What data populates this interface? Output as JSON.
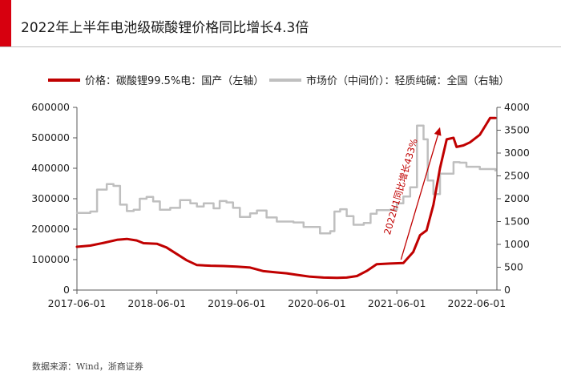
{
  "page": {
    "title": "2022年上半年电池级碳酸锂价格同比增长4.3倍",
    "source": "数据来源：Wind，浙商证券",
    "colors": {
      "accent": "#d7000f",
      "series_primary": "#c00000",
      "series_secondary": "#bfbfbf"
    }
  },
  "chart_data": {
    "type": "line",
    "legend": [
      {
        "name": "价格：碳酸锂99.5%电：国产（左轴）",
        "color": "#c00000"
      },
      {
        "name": "市场价（中间价）：轻质纯碱：全国（右轴）",
        "color": "#bfbfbf"
      }
    ],
    "legend_placement": "top",
    "grid": false,
    "x_axis": {
      "type": "date",
      "range": [
        "2017-06-01",
        "2022-09-01"
      ],
      "ticks": [
        "2017-06-01",
        "2018-06-01",
        "2019-06-01",
        "2020-06-01",
        "2021-06-01",
        "2022-06-01"
      ]
    },
    "y_left": {
      "range": [
        0,
        600000
      ],
      "ticks": [
        0,
        100000,
        200000,
        300000,
        400000,
        500000,
        600000
      ]
    },
    "y_right": {
      "range": [
        0,
        4000
      ],
      "ticks": [
        0,
        500,
        1000,
        1500,
        2000,
        2500,
        3000,
        3500,
        4000
      ]
    },
    "annotation": {
      "text": "2022H1同比增长433%",
      "color": "#c00000"
    },
    "series": [
      {
        "name": "价格：碳酸锂99.5%电：国产（左轴）",
        "axis": "left",
        "points": [
          [
            "2017-06-01",
            142000
          ],
          [
            "2017-08-01",
            146000
          ],
          [
            "2017-10-01",
            155000
          ],
          [
            "2017-12-01",
            165000
          ],
          [
            "2018-01-15",
            168000
          ],
          [
            "2018-03-01",
            163000
          ],
          [
            "2018-04-01",
            154000
          ],
          [
            "2018-06-01",
            152000
          ],
          [
            "2018-07-15",
            140000
          ],
          [
            "2018-09-01",
            118000
          ],
          [
            "2018-10-15",
            98000
          ],
          [
            "2018-12-01",
            82000
          ],
          [
            "2019-02-01",
            80000
          ],
          [
            "2019-04-01",
            79000
          ],
          [
            "2019-06-01",
            77000
          ],
          [
            "2019-08-01",
            74000
          ],
          [
            "2019-10-01",
            62000
          ],
          [
            "2019-12-01",
            58000
          ],
          [
            "2020-01-15",
            55000
          ],
          [
            "2020-03-01",
            50000
          ],
          [
            "2020-05-01",
            44000
          ],
          [
            "2020-07-01",
            41000
          ],
          [
            "2020-09-01",
            40000
          ],
          [
            "2020-10-15",
            41000
          ],
          [
            "2020-12-01",
            46000
          ],
          [
            "2021-01-15",
            63000
          ],
          [
            "2021-03-01",
            85000
          ],
          [
            "2021-05-01",
            87000
          ],
          [
            "2021-07-01",
            89000
          ],
          [
            "2021-08-15",
            125000
          ],
          [
            "2021-09-15",
            180000
          ],
          [
            "2021-10-15",
            196000
          ],
          [
            "2021-11-15",
            280000
          ],
          [
            "2021-12-15",
            400000
          ],
          [
            "2022-01-15",
            495000
          ],
          [
            "2022-02-15",
            500000
          ],
          [
            "2022-03-01",
            470000
          ],
          [
            "2022-04-01",
            475000
          ],
          [
            "2022-05-01",
            485000
          ],
          [
            "2022-06-15",
            510000
          ],
          [
            "2022-07-15",
            545000
          ],
          [
            "2022-08-01",
            565000
          ],
          [
            "2022-08-25",
            565000
          ]
        ]
      },
      {
        "name": "市场价（中间价）：轻质纯碱：全国（右轴）",
        "axis": "right",
        "points": [
          [
            "2017-06-01",
            1690
          ],
          [
            "2017-08-01",
            1720
          ],
          [
            "2017-09-01",
            2200
          ],
          [
            "2017-10-15",
            2320
          ],
          [
            "2017-11-15",
            2280
          ],
          [
            "2017-12-15",
            1870
          ],
          [
            "2018-01-15",
            1730
          ],
          [
            "2018-02-15",
            1760
          ],
          [
            "2018-03-15",
            2000
          ],
          [
            "2018-04-15",
            2040
          ],
          [
            "2018-05-15",
            1940
          ],
          [
            "2018-06-15",
            1760
          ],
          [
            "2018-08-01",
            1800
          ],
          [
            "2018-09-15",
            1970
          ],
          [
            "2018-11-01",
            1900
          ],
          [
            "2018-12-01",
            1830
          ],
          [
            "2019-01-01",
            1900
          ],
          [
            "2019-02-15",
            1790
          ],
          [
            "2019-03-15",
            1950
          ],
          [
            "2019-04-15",
            1920
          ],
          [
            "2019-05-15",
            1800
          ],
          [
            "2019-06-15",
            1600
          ],
          [
            "2019-08-01",
            1680
          ],
          [
            "2019-09-01",
            1740
          ],
          [
            "2019-10-15",
            1590
          ],
          [
            "2019-12-01",
            1500
          ],
          [
            "2020-02-15",
            1480
          ],
          [
            "2020-04-01",
            1380
          ],
          [
            "2020-06-15",
            1240
          ],
          [
            "2020-08-01",
            1290
          ],
          [
            "2020-08-20",
            1720
          ],
          [
            "2020-09-15",
            1770
          ],
          [
            "2020-10-15",
            1620
          ],
          [
            "2020-11-15",
            1430
          ],
          [
            "2021-01-01",
            1470
          ],
          [
            "2021-02-01",
            1670
          ],
          [
            "2021-03-01",
            1750
          ],
          [
            "2021-05-01",
            1760
          ],
          [
            "2021-06-01",
            1900
          ],
          [
            "2021-07-01",
            2050
          ],
          [
            "2021-08-01",
            2250
          ],
          [
            "2021-09-01",
            3600
          ],
          [
            "2021-10-01",
            3300
          ],
          [
            "2021-10-20",
            2400
          ],
          [
            "2021-11-15",
            2100
          ],
          [
            "2021-12-15",
            2550
          ],
          [
            "2022-01-15",
            2550
          ],
          [
            "2022-02-15",
            2800
          ],
          [
            "2022-03-15",
            2790
          ],
          [
            "2022-04-15",
            2700
          ],
          [
            "2022-05-15",
            2700
          ],
          [
            "2022-06-15",
            2650
          ],
          [
            "2022-07-15",
            2650
          ],
          [
            "2022-08-25",
            2620
          ]
        ]
      }
    ]
  }
}
